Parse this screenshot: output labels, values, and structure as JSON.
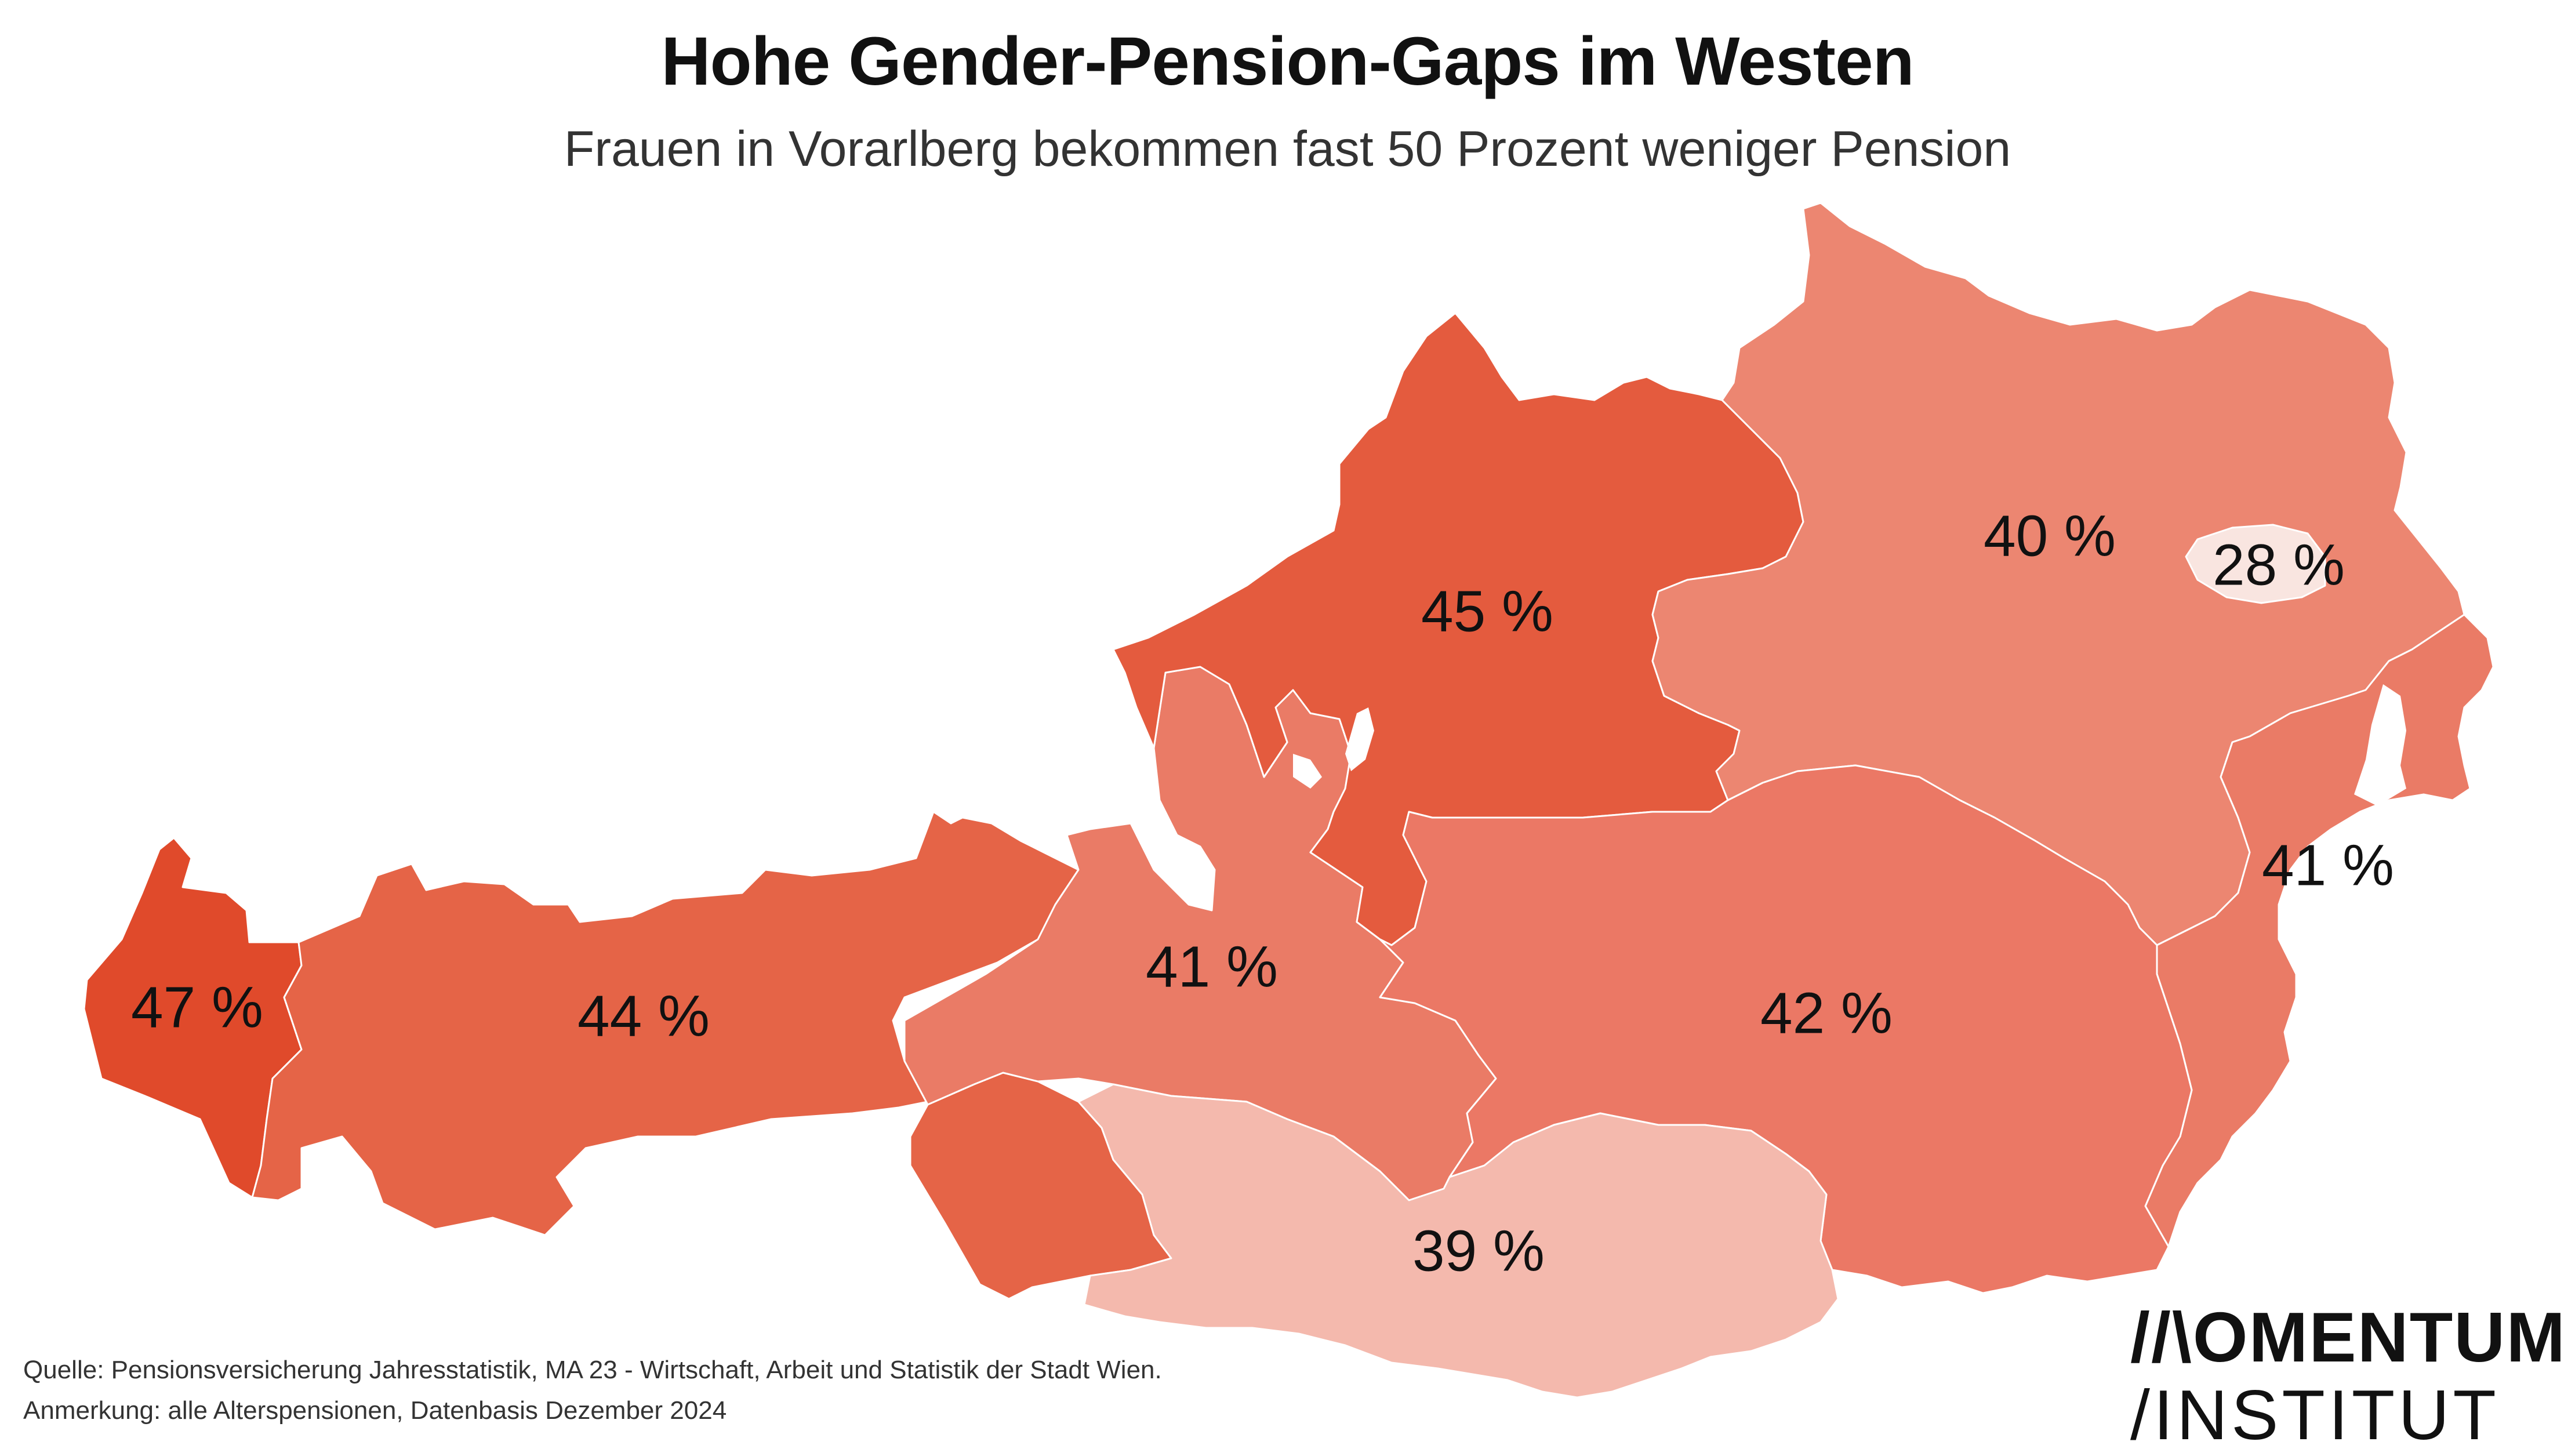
{
  "header": {
    "title": "Hohe Gender-Pension-Gaps im Westen",
    "subtitle": "Frauen in Vorarlberg bekommen fast 50 Prozent weniger Pension"
  },
  "map": {
    "regions": [
      {
        "id": "vorarlberg",
        "value": "47 %",
        "color": "#e04a2b"
      },
      {
        "id": "tirol",
        "value": "44 %",
        "color": "#e56447"
      },
      {
        "id": "salzburg",
        "value": "41 %",
        "color": "#ea7b66"
      },
      {
        "id": "oberoesterreich",
        "value": "45 %",
        "color": "#e45b3e"
      },
      {
        "id": "niederoesterreich",
        "value": "40 %",
        "color": "#ec8671"
      },
      {
        "id": "wien",
        "value": "28 %",
        "color": "#f9e5e0"
      },
      {
        "id": "burgenland",
        "value": "41 %",
        "color": "#ea7b66"
      },
      {
        "id": "steiermark",
        "value": "42 %",
        "color": "#eb7865"
      },
      {
        "id": "kaernten",
        "value": "39 %",
        "color": "#f4b9ad"
      }
    ]
  },
  "footer": {
    "source": "Quelle: Pensionsversicherung Jahresstatistik, MA 23 - Wirtschaft, Arbeit und Statistik der Stadt Wien.",
    "note": "Anmerkung: alle Alterspensionen, Datenbasis Dezember 2024"
  },
  "logo": {
    "line1": "//\\OMENTUM",
    "line2": "/INSTITUT"
  }
}
